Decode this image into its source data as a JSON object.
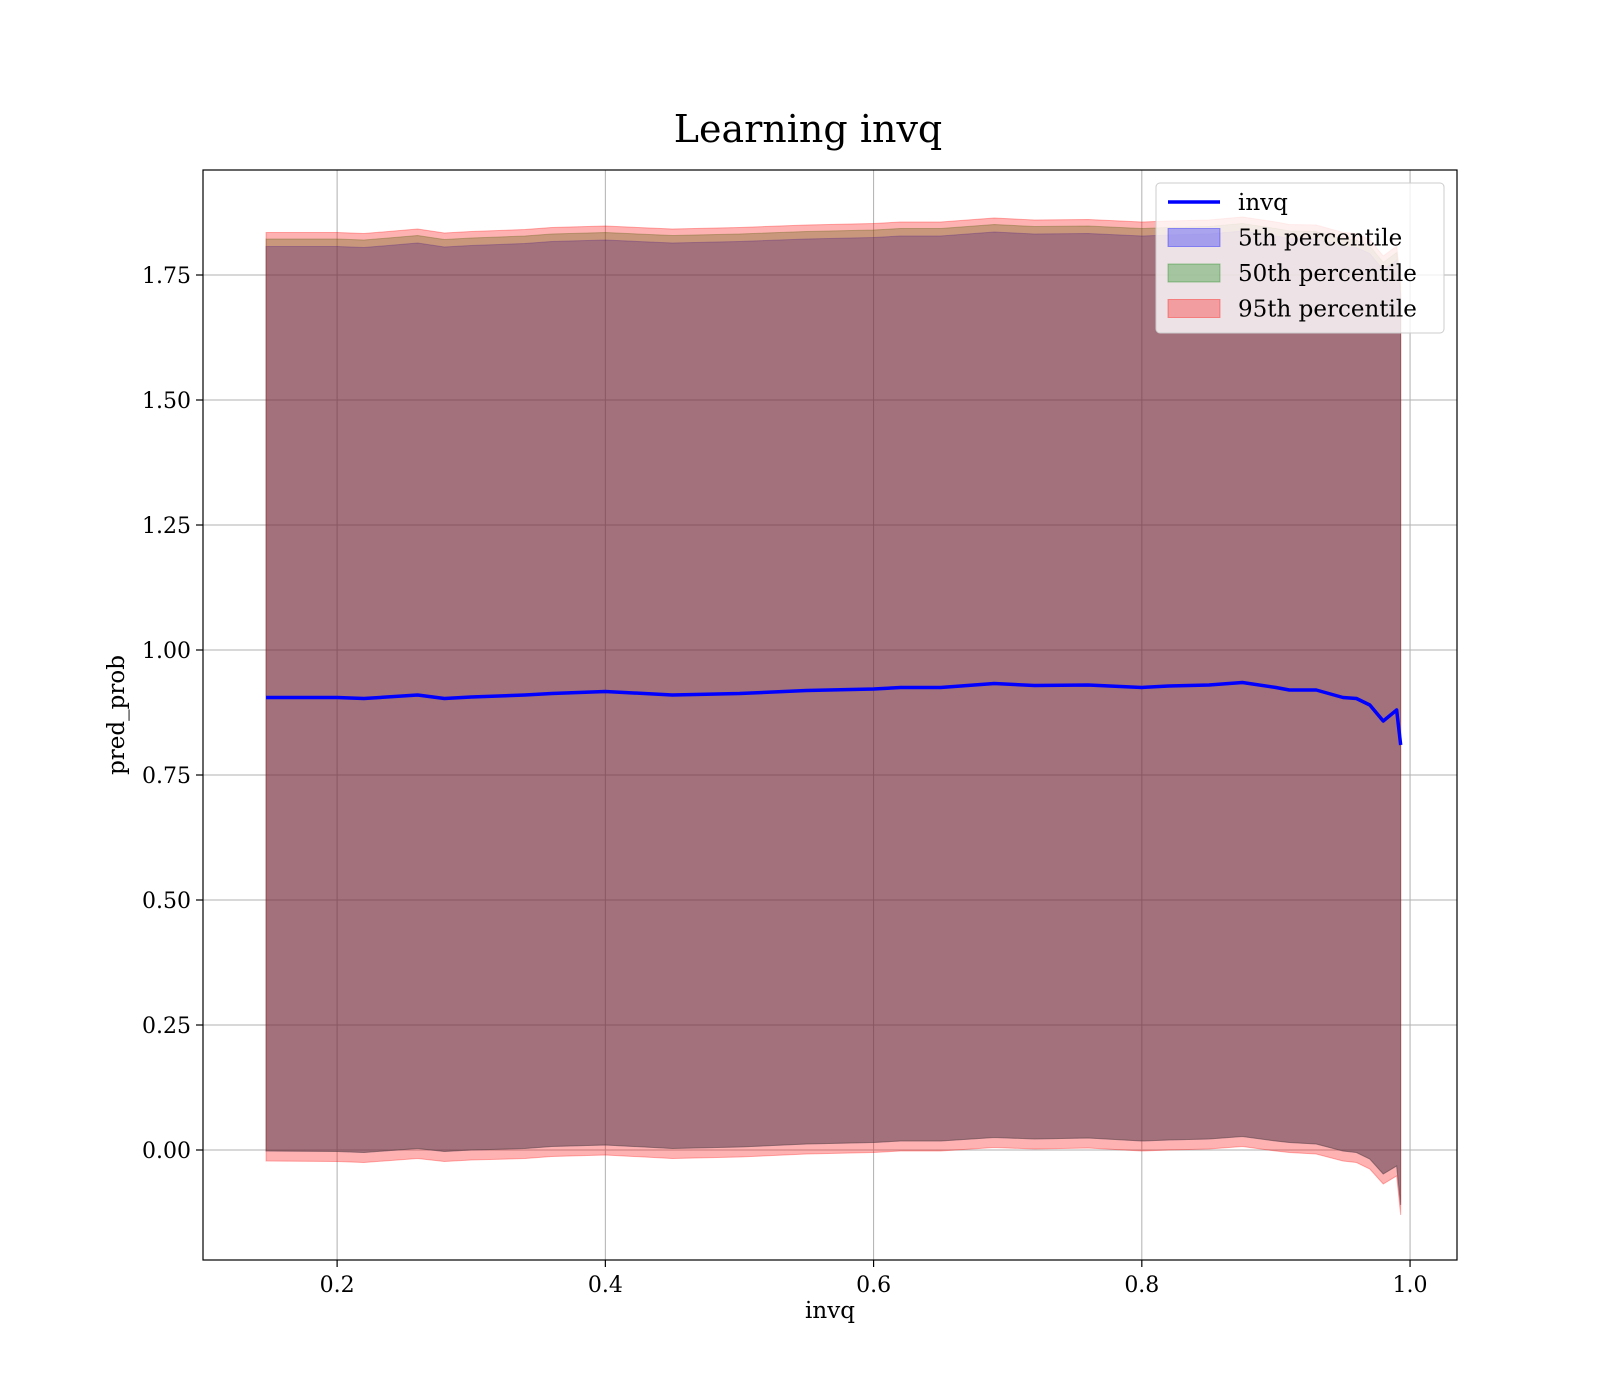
{
  "chart_data": {
    "type": "area",
    "title": "Learning invq",
    "xlabel": "invq",
    "ylabel": "pred_prob",
    "xlim": [
      0.1,
      1.035
    ],
    "ylim": [
      -0.22,
      1.96
    ],
    "grid": true,
    "legend_position": "top-right",
    "x_ticks": [
      "0.2",
      "0.4",
      "0.6",
      "0.8",
      "1.0"
    ],
    "x_tick_values": [
      0.2,
      0.4,
      0.6,
      0.8,
      1.0
    ],
    "y_ticks": [
      "0.00",
      "0.25",
      "0.50",
      "0.75",
      "1.00",
      "1.25",
      "1.50",
      "1.75"
    ],
    "y_tick_values": [
      0.0,
      0.25,
      0.5,
      0.75,
      1.0,
      1.25,
      1.5,
      1.75
    ],
    "x": [
      0.147,
      0.2,
      0.22,
      0.26,
      0.28,
      0.3,
      0.34,
      0.36,
      0.4,
      0.45,
      0.5,
      0.55,
      0.6,
      0.62,
      0.65,
      0.69,
      0.72,
      0.76,
      0.8,
      0.82,
      0.85,
      0.875,
      0.9,
      0.91,
      0.93,
      0.95,
      0.96,
      0.97,
      0.98,
      0.99,
      0.993
    ],
    "series": [
      {
        "name": "invq",
        "kind": "line",
        "color": "#0000ff",
        "values": [
          0.905,
          0.905,
          0.903,
          0.91,
          0.903,
          0.906,
          0.91,
          0.913,
          0.917,
          0.91,
          0.913,
          0.919,
          0.922,
          0.925,
          0.925,
          0.933,
          0.929,
          0.93,
          0.925,
          0.928,
          0.93,
          0.935,
          0.925,
          0.92,
          0.92,
          0.905,
          0.903,
          0.89,
          0.858,
          0.88,
          0.81
        ]
      },
      {
        "name": "5th percentile",
        "kind": "band",
        "color": "#0000ff",
        "lower": [
          -0.002,
          -0.003,
          -0.005,
          0.003,
          -0.003,
          0.0,
          0.003,
          0.007,
          0.01,
          0.003,
          0.006,
          0.012,
          0.015,
          0.018,
          0.018,
          0.025,
          0.022,
          0.024,
          0.018,
          0.02,
          0.022,
          0.027,
          0.018,
          0.015,
          0.012,
          -0.002,
          -0.005,
          -0.018,
          -0.048,
          -0.032,
          -0.11
        ],
        "upper": [
          1.807,
          1.807,
          1.805,
          1.814,
          1.806,
          1.809,
          1.813,
          1.817,
          1.82,
          1.814,
          1.817,
          1.822,
          1.825,
          1.828,
          1.828,
          1.836,
          1.832,
          1.833,
          1.828,
          1.83,
          1.832,
          1.838,
          1.828,
          1.823,
          1.822,
          1.807,
          1.805,
          1.793,
          1.76,
          1.78,
          1.71
        ]
      },
      {
        "name": "50th percentile",
        "kind": "band",
        "color": "#008000",
        "lower": [
          -0.002,
          -0.003,
          -0.005,
          0.003,
          -0.003,
          0.0,
          0.003,
          0.007,
          0.01,
          0.003,
          0.006,
          0.012,
          0.015,
          0.018,
          0.018,
          0.025,
          0.022,
          0.024,
          0.018,
          0.02,
          0.022,
          0.027,
          0.018,
          0.015,
          0.012,
          -0.002,
          -0.005,
          -0.018,
          -0.048,
          -0.032,
          -0.11
        ],
        "upper": [
          1.822,
          1.822,
          1.82,
          1.829,
          1.821,
          1.824,
          1.828,
          1.832,
          1.835,
          1.829,
          1.832,
          1.837,
          1.84,
          1.843,
          1.843,
          1.851,
          1.847,
          1.848,
          1.843,
          1.845,
          1.847,
          1.853,
          1.843,
          1.838,
          1.837,
          1.822,
          1.82,
          1.808,
          1.775,
          1.795,
          1.725
        ]
      },
      {
        "name": "95th percentile",
        "kind": "band",
        "color": "#ff0000",
        "lower": [
          -0.022,
          -0.023,
          -0.025,
          -0.017,
          -0.023,
          -0.02,
          -0.017,
          -0.013,
          -0.01,
          -0.017,
          -0.014,
          -0.008,
          -0.005,
          -0.002,
          -0.002,
          0.005,
          0.002,
          0.004,
          -0.002,
          0.0,
          0.002,
          0.007,
          -0.002,
          -0.005,
          -0.008,
          -0.022,
          -0.025,
          -0.038,
          -0.068,
          -0.052,
          -0.13
        ],
        "upper": [
          1.835,
          1.835,
          1.833,
          1.842,
          1.834,
          1.837,
          1.841,
          1.845,
          1.848,
          1.842,
          1.845,
          1.85,
          1.853,
          1.856,
          1.856,
          1.864,
          1.86,
          1.861,
          1.856,
          1.858,
          1.86,
          1.866,
          1.856,
          1.851,
          1.85,
          1.835,
          1.833,
          1.821,
          1.788,
          1.808,
          1.738
        ]
      }
    ]
  }
}
